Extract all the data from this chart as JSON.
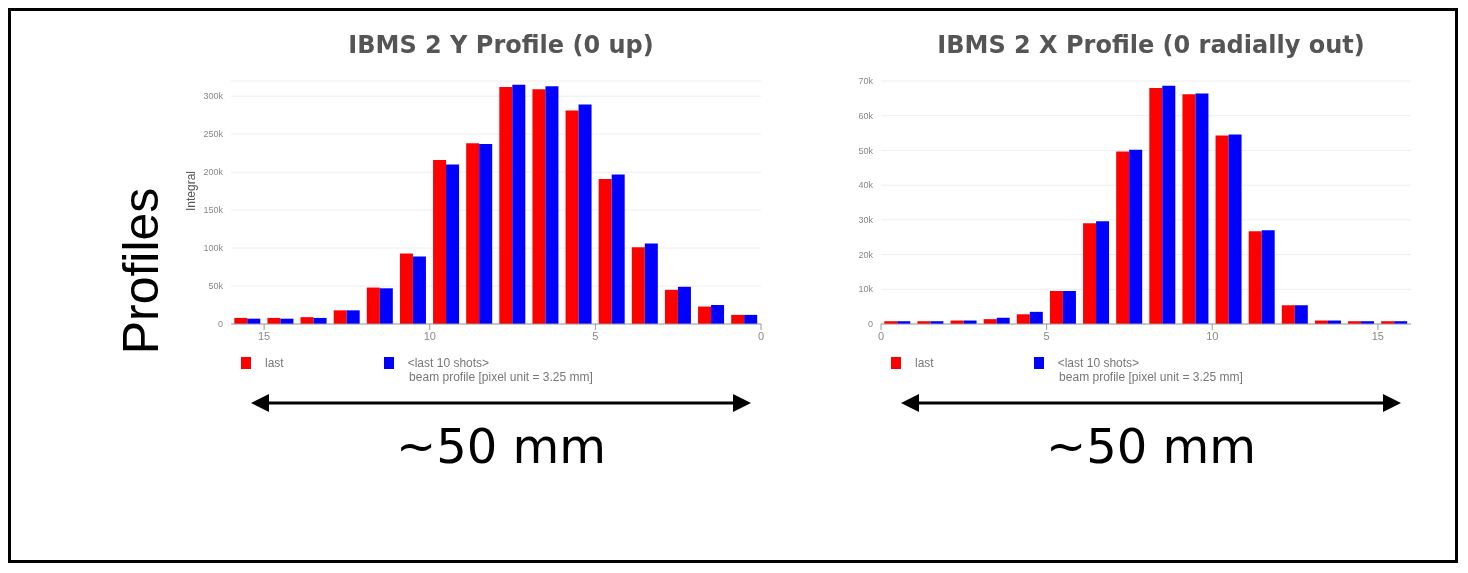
{
  "chart_data": [
    {
      "type": "bar",
      "title": "IBMS 2 Y Profile (0 up)",
      "xlabel": "beam profile [pixel unit = 3.25 mm]",
      "ylabel": "Integral",
      "annotations": [
        "Profiles",
        "~50 mm"
      ],
      "x": [
        15.5,
        14.5,
        13.5,
        12.5,
        11.5,
        10.5,
        9.5,
        8.5,
        7.5,
        6.5,
        5.5,
        4.5,
        3.5,
        2.5,
        1.5,
        0.5
      ],
      "series": [
        {
          "name": "last",
          "color": "#ff0000",
          "values": [
            8000,
            8000,
            9000,
            18000,
            48000,
            93000,
            216000,
            238000,
            312000,
            309000,
            281000,
            191000,
            101000,
            45000,
            23000,
            12000
          ]
        },
        {
          "name": "<last 10 shots>",
          "color": "#0000ff",
          "values": [
            7000,
            7000,
            8000,
            18000,
            47000,
            89000,
            210000,
            237000,
            315000,
            313000,
            289000,
            197000,
            106000,
            49000,
            25000,
            12000
          ]
        }
      ],
      "xlim": [
        16,
        0
      ],
      "xticks": [
        15,
        10,
        5,
        0
      ],
      "ylim": [
        0,
        320000
      ],
      "yticks": [
        0,
        {
          "value": 50000,
          "label": "50k"
        },
        {
          "value": 100000,
          "label": "100k"
        },
        {
          "value": 150000,
          "label": "150k"
        },
        {
          "value": 200000,
          "label": "200k"
        },
        {
          "value": 250000,
          "label": "250k"
        },
        {
          "value": 300000,
          "label": "300k"
        }
      ],
      "grid": "y",
      "legend": "bottom left"
    },
    {
      "type": "bar",
      "title": "IBMS 2 X Profile (0 radially out)",
      "xlabel": "beam profile [pixel unit = 3.25 mm]",
      "annotations": [
        "~50 mm"
      ],
      "x": [
        0.5,
        1.5,
        2.5,
        3.5,
        4.5,
        5.5,
        6.5,
        7.5,
        8.5,
        9.5,
        10.5,
        11.5,
        12.5,
        13.5,
        14.5,
        15.5
      ],
      "series": [
        {
          "name": "last",
          "color": "#ff0000",
          "values": [
            800,
            800,
            1000,
            1400,
            2800,
            9500,
            29000,
            49700,
            68000,
            66200,
            54300,
            26700,
            5400,
            1000,
            800,
            800
          ]
        },
        {
          "name": "<last 10 shots>",
          "color": "#0000ff",
          "values": [
            800,
            800,
            1000,
            1800,
            3500,
            9500,
            29600,
            50200,
            68600,
            66400,
            54600,
            27000,
            5400,
            1000,
            800,
            800
          ]
        }
      ],
      "xlim": [
        0,
        16
      ],
      "xticks": [
        0,
        5,
        10,
        15
      ],
      "ylim": [
        0,
        70000
      ],
      "yticks": [
        0,
        {
          "value": 10000,
          "label": "10k"
        },
        {
          "value": 20000,
          "label": "20k"
        },
        {
          "value": 30000,
          "label": "30k"
        },
        {
          "value": 40000,
          "label": "40k"
        },
        {
          "value": 50000,
          "label": "50k"
        },
        {
          "value": 60000,
          "label": "60k"
        },
        {
          "value": 70000,
          "label": "70k"
        }
      ],
      "grid": "y",
      "legend": "bottom left"
    }
  ]
}
